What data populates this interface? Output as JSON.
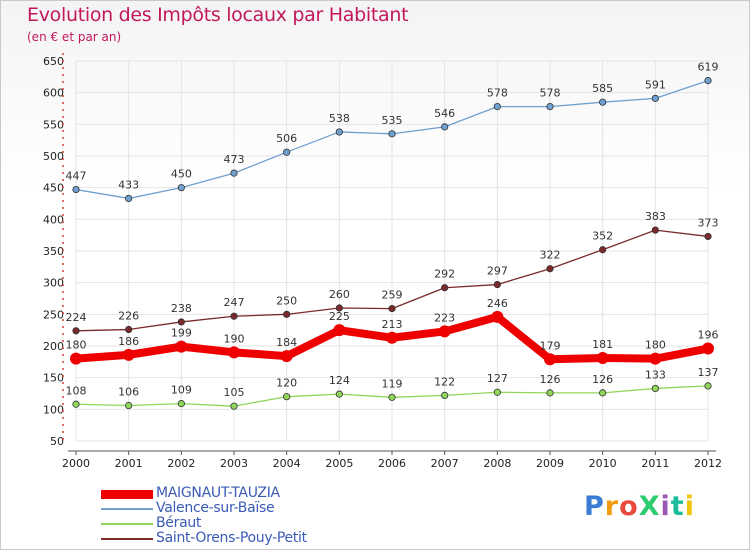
{
  "header": {
    "title": "Evolution des Impôts locaux par Habitant",
    "subtitle": "(en € et par an)"
  },
  "logo": {
    "text": "ProXiti",
    "colors": [
      "#3a7bd5",
      "#f39c12",
      "#e74c3c",
      "#2ecc71",
      "#9b59b6",
      "#1abc9c",
      "#f1c40f"
    ]
  },
  "chart_data": {
    "type": "line",
    "x": [
      2000,
      2001,
      2002,
      2003,
      2004,
      2005,
      2006,
      2007,
      2008,
      2009,
      2010,
      2011,
      2012
    ],
    "ylim": [
      50,
      650
    ],
    "yticks": [
      50,
      100,
      150,
      200,
      250,
      300,
      350,
      400,
      450,
      500,
      550,
      600,
      650
    ],
    "title": "Evolution des Impôts locaux par Habitant",
    "grid": true,
    "legend_position": "bottom-left",
    "series": [
      {
        "name": "MAIGNAUT-TAUZIA",
        "values": [
          180,
          186,
          199,
          190,
          184,
          225,
          213,
          223,
          246,
          179,
          181,
          180,
          196
        ],
        "color": "#ee0000",
        "emphasis": true
      },
      {
        "name": "Valence-sur-Baïse",
        "values": [
          447,
          433,
          450,
          473,
          506,
          538,
          535,
          546,
          578,
          578,
          585,
          591,
          619
        ],
        "color": "#6fa0d0"
      },
      {
        "name": "Béraut",
        "values": [
          108,
          106,
          109,
          105,
          120,
          124,
          119,
          122,
          127,
          126,
          126,
          133,
          137
        ],
        "color": "#8fd65a"
      },
      {
        "name": "Saint-Orens-Pouy-Petit",
        "values": [
          224,
          226,
          238,
          247,
          250,
          260,
          259,
          292,
          297,
          322,
          352,
          383,
          373
        ],
        "color": "#7a2a2a"
      }
    ]
  }
}
